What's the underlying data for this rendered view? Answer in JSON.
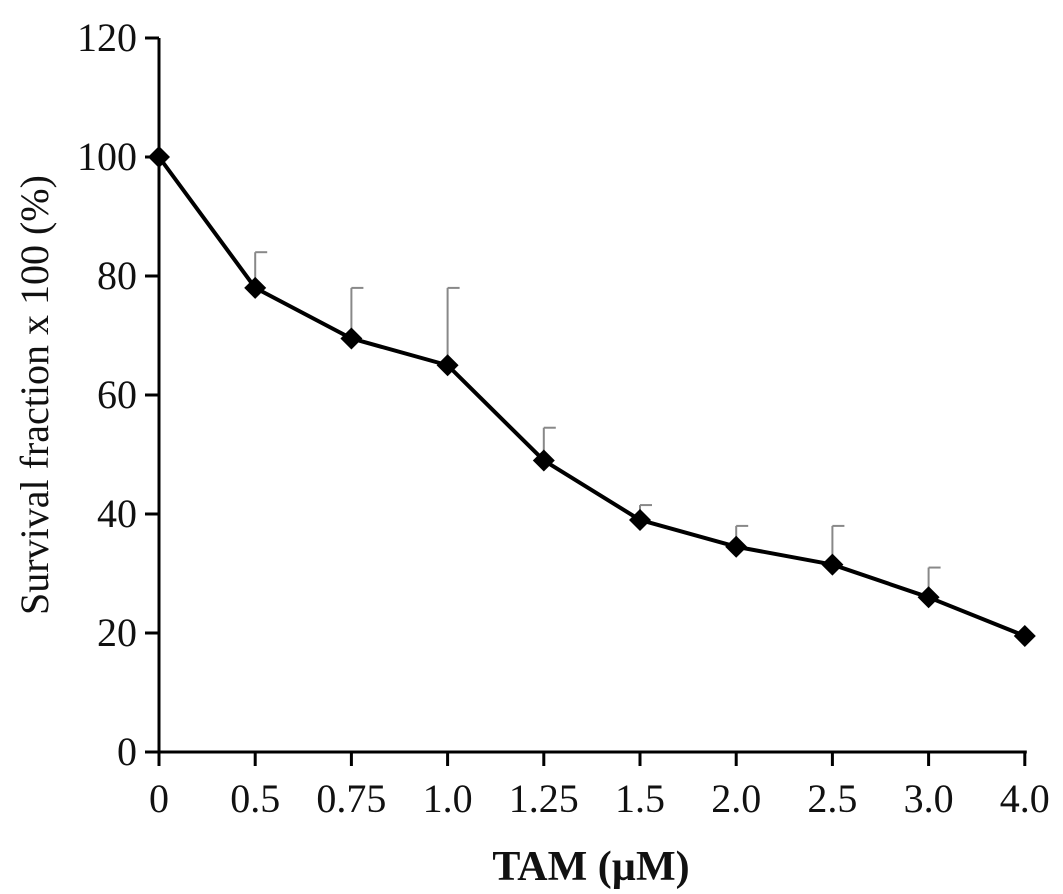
{
  "chart_data": {
    "type": "line",
    "title": "",
    "xlabel": "TAM (µM)",
    "ylabel": "Survival fraction x 100 (%)",
    "categories": [
      "0",
      "0.5",
      "0.75",
      "1.0",
      "1.25",
      "1.5",
      "2.0",
      "2.5",
      "3.0",
      "4.0"
    ],
    "series": [
      {
        "values": [
          100,
          78,
          69.5,
          65,
          49,
          39,
          34.5,
          31.5,
          26,
          19.5
        ],
        "error_upper": [
          null,
          84,
          78,
          78,
          54.5,
          41.5,
          38,
          38,
          31,
          null
        ]
      }
    ],
    "yticks": [
      "0",
      "20",
      "40",
      "60",
      "80",
      "100",
      "120"
    ],
    "ylim": [
      0,
      120
    ],
    "grid": false,
    "legend": "none",
    "colors": {
      "line": "#000000",
      "marker": "#000000",
      "error_bar": "#888888"
    }
  }
}
